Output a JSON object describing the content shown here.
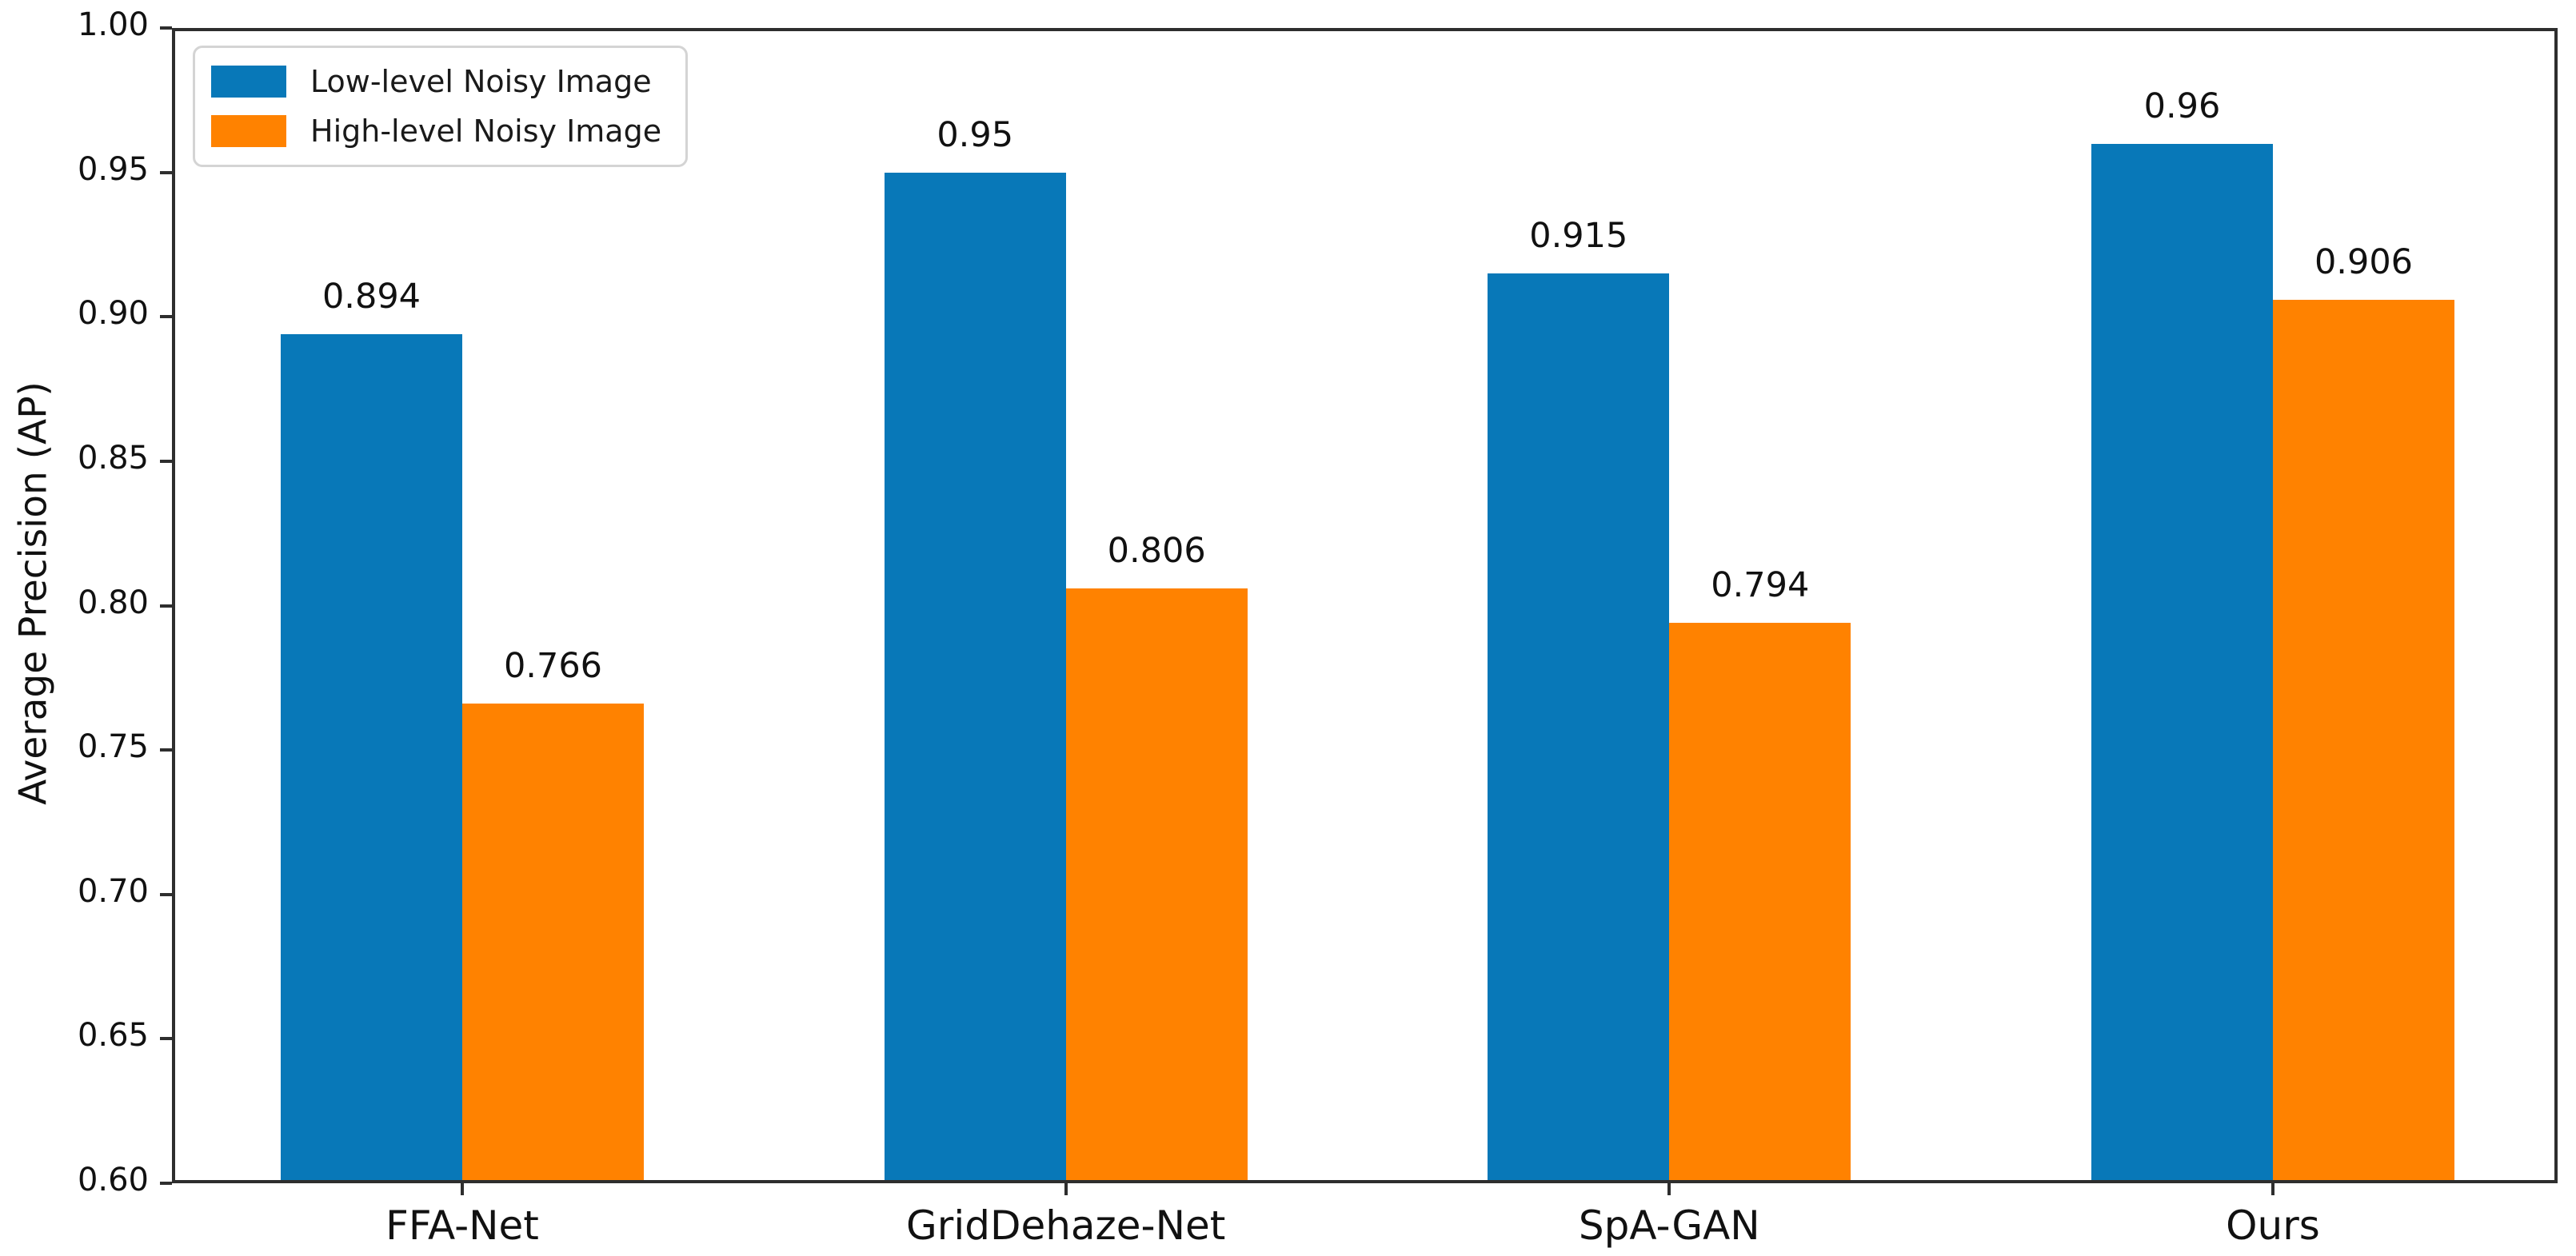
{
  "chart_data": {
    "type": "bar",
    "title": "",
    "xlabel": "",
    "ylabel": "Average Precision (AP)",
    "categories": [
      "FFA-Net",
      "GridDehaze-Net",
      "SpA-GAN",
      "Ours"
    ],
    "series": [
      {
        "name": "Low-level Noisy Image",
        "color": "#0878B8",
        "values": [
          0.894,
          0.95,
          0.915,
          0.96
        ],
        "value_labels": [
          "0.894",
          "0.95",
          "0.915",
          "0.96"
        ]
      },
      {
        "name": "High-level Noisy Image",
        "color": "#FF8200",
        "values": [
          0.766,
          0.806,
          0.794,
          0.906
        ],
        "value_labels": [
          "0.766",
          "0.806",
          "0.794",
          "0.906"
        ]
      }
    ],
    "ylim": [
      0.6,
      1.0
    ],
    "ytick_step": 0.05,
    "ytick_labels": [
      "0.60",
      "0.65",
      "0.70",
      "0.75",
      "0.80",
      "0.85",
      "0.90",
      "0.95",
      "1.00"
    ],
    "grid": false,
    "legend_position": "upper-left",
    "bar_value_labels_shown": true,
    "axis_color": "#2e2e2e",
    "background_color": "#ffffff"
  }
}
